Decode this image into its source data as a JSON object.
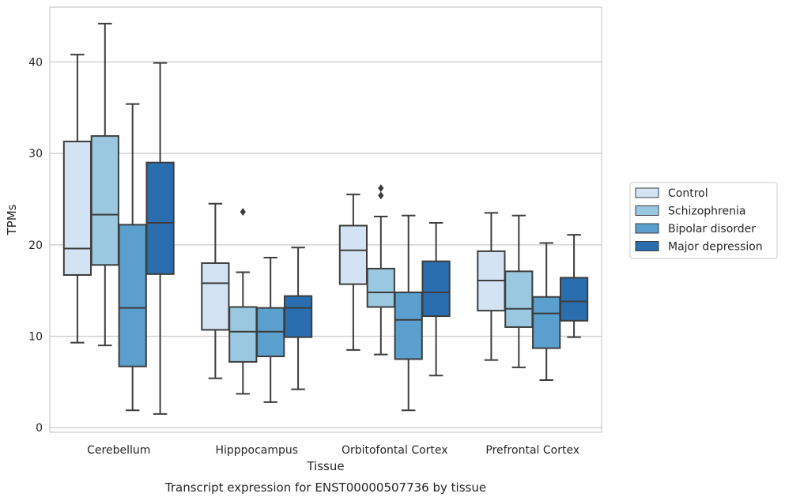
{
  "chart_data": {
    "type": "box",
    "xlabel": "Tissue",
    "ylabel": "TPMs",
    "caption": "Transcript expression for ENST00000507736 by tissue",
    "ylim": [
      -0.5,
      46
    ],
    "yticks": [
      0,
      10,
      20,
      30,
      40
    ],
    "grid": "horizontal",
    "legend_position": "right",
    "categories": [
      "Cerebellum",
      "Hipppocampus",
      "Orbitofontal Cortex",
      "Prefrontal Cortex"
    ],
    "series": [
      {
        "name": "Control",
        "color": "#d3e3f3",
        "boxes": [
          {
            "whislo": 9.3,
            "q1": 16.7,
            "med": 19.6,
            "q3": 31.3,
            "whishi": 40.8,
            "fliers": []
          },
          {
            "whislo": 5.4,
            "q1": 10.7,
            "med": 15.8,
            "q3": 18.0,
            "whishi": 24.5,
            "fliers": []
          },
          {
            "whislo": 8.5,
            "q1": 15.7,
            "med": 19.4,
            "q3": 22.1,
            "whishi": 25.5,
            "fliers": []
          },
          {
            "whislo": 7.4,
            "q1": 12.8,
            "med": 16.1,
            "q3": 19.3,
            "whishi": 23.5,
            "fliers": []
          }
        ]
      },
      {
        "name": "Schizophrenia",
        "color": "#9ac8e0",
        "boxes": [
          {
            "whislo": 9.0,
            "q1": 17.8,
            "med": 23.3,
            "q3": 31.9,
            "whishi": 44.2,
            "fliers": []
          },
          {
            "whislo": 3.7,
            "q1": 7.2,
            "med": 10.5,
            "q3": 13.2,
            "whishi": 17.0,
            "fliers": [
              23.6
            ]
          },
          {
            "whislo": 8.0,
            "q1": 13.2,
            "med": 14.8,
            "q3": 17.4,
            "whishi": 23.1,
            "fliers": [
              25.4,
              26.2
            ]
          },
          {
            "whislo": 6.6,
            "q1": 11.0,
            "med": 13.0,
            "q3": 17.1,
            "whishi": 23.2,
            "fliers": []
          }
        ]
      },
      {
        "name": "Bipolar disorder",
        "color": "#5a9fcd",
        "boxes": [
          {
            "whislo": 1.9,
            "q1": 6.7,
            "med": 13.1,
            "q3": 22.2,
            "whishi": 35.4,
            "fliers": []
          },
          {
            "whislo": 2.8,
            "q1": 7.8,
            "med": 10.5,
            "q3": 13.1,
            "whishi": 18.6,
            "fliers": []
          },
          {
            "whislo": 1.9,
            "q1": 7.5,
            "med": 11.8,
            "q3": 14.8,
            "whishi": 23.2,
            "fliers": []
          },
          {
            "whislo": 5.2,
            "q1": 8.7,
            "med": 12.5,
            "q3": 14.3,
            "whishi": 20.2,
            "fliers": []
          }
        ]
      },
      {
        "name": "Major depression",
        "color": "#2a6eaf",
        "boxes": [
          {
            "whislo": 1.5,
            "q1": 16.8,
            "med": 22.4,
            "q3": 29.0,
            "whishi": 39.9,
            "fliers": []
          },
          {
            "whislo": 4.2,
            "q1": 9.9,
            "med": 13.1,
            "q3": 14.4,
            "whishi": 19.7,
            "fliers": []
          },
          {
            "whislo": 5.7,
            "q1": 12.2,
            "med": 14.8,
            "q3": 18.2,
            "whishi": 22.4,
            "fliers": []
          },
          {
            "whislo": 9.9,
            "q1": 11.7,
            "med": 13.8,
            "q3": 16.4,
            "whishi": 21.1,
            "fliers": []
          }
        ]
      }
    ]
  }
}
